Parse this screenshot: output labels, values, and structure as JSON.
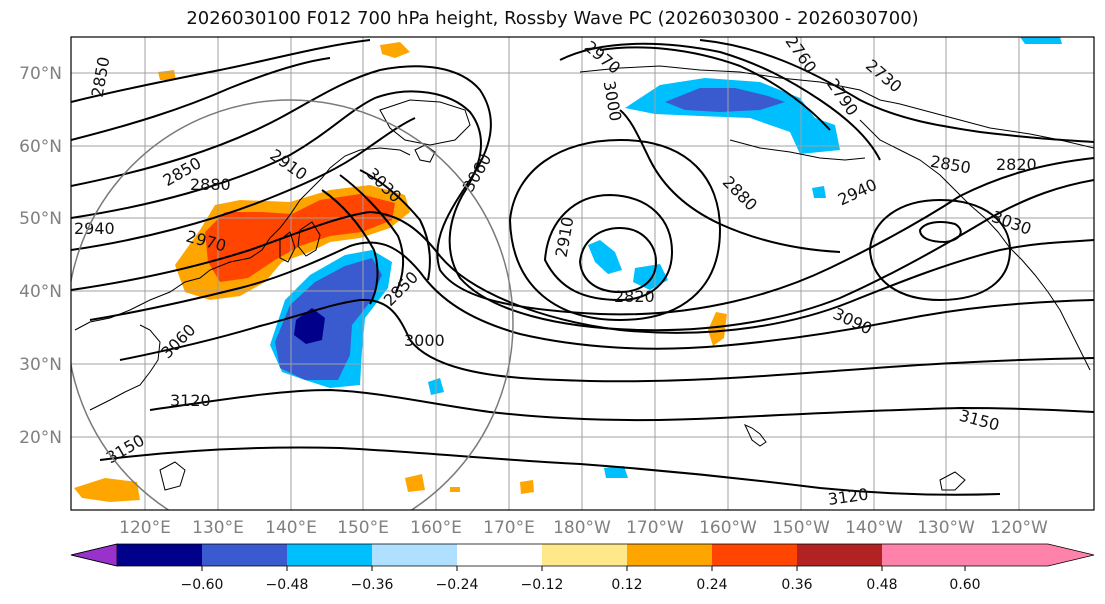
{
  "title": "2026030100 F012 700 hPa height, Rossby Wave PC (2026030300 - 2026030700)",
  "map": {
    "lat_labels": [
      "70°N",
      "60°N",
      "50°N",
      "40°N",
      "30°N",
      "20°N"
    ],
    "lon_labels": [
      "120°E",
      "130°E",
      "140°E",
      "150°E",
      "160°E",
      "170°E",
      "180°W",
      "170°W",
      "160°W",
      "150°W",
      "140°W",
      "130°W",
      "120°W"
    ],
    "contour_labels": [
      "2850",
      "2970",
      "2760",
      "2790",
      "2730",
      "3000",
      "2850",
      "2880",
      "2910",
      "3030",
      "3060",
      "2940",
      "2970",
      "2820",
      "2850",
      "2880",
      "2910",
      "2940",
      "3030",
      "3000",
      "2850",
      "3060",
      "3090",
      "3120",
      "3150",
      "3150",
      "3120",
      "2820"
    ]
  },
  "colorbar": {
    "ticks": [
      "−0.60",
      "−0.48",
      "−0.36",
      "−0.24",
      "−0.12",
      "0.12",
      "0.24",
      "0.36",
      "0.48",
      "0.60"
    ],
    "colors": [
      "#9932cc",
      "#00008b",
      "#3a5bd0",
      "#00bfff",
      "#b0e0ff",
      "#ffffff",
      "#ffe88a",
      "#ffa500",
      "#ff4500",
      "#b22222",
      "#ff82ab"
    ]
  },
  "palette": {
    "neg_strong": "#00008b",
    "neg_mid": "#3a5bd0",
    "neg_weak": "#00bfff",
    "pos_weak": "#ffa500",
    "pos_mid": "#ff4500"
  }
}
